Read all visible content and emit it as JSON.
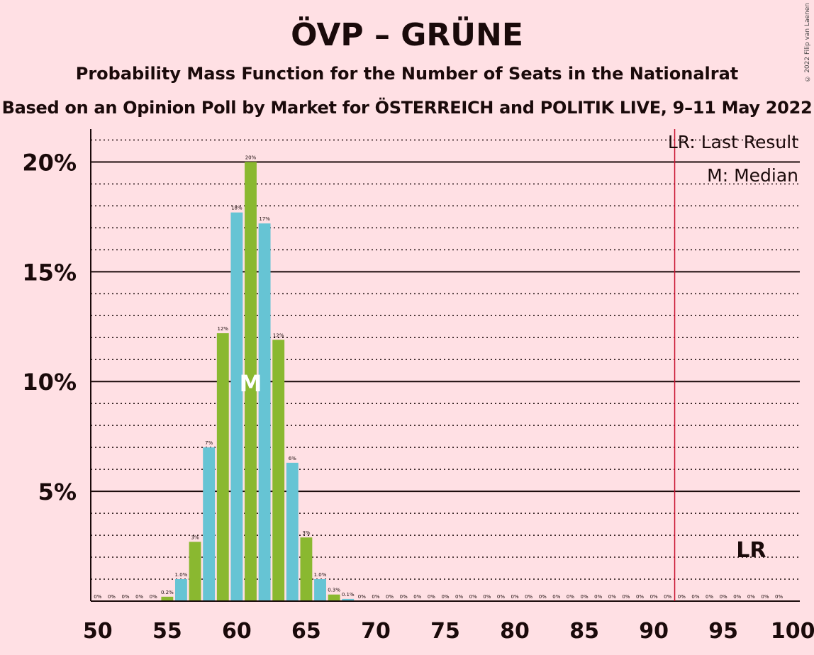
{
  "header": {
    "title": "ÖVP – GRÜNE",
    "subtitle": "Probability Mass Function for the Number of Seats in the Nationalrat",
    "source_line": "Based on an Opinion Poll by Market for ÖSTERREICH and POLITIK LIVE, 9–11 May 2022",
    "copyright": "© 2022 Filip van Laenen"
  },
  "legend": {
    "last_result": "LR: Last Result",
    "median": "M: Median",
    "lr_marker": "LR",
    "median_marker": "M"
  },
  "colors": {
    "background": "#ffe0e4",
    "green": "#8ab830",
    "blue": "#66c4d4",
    "last_result_line": "#c8102e",
    "text": "#1a0a0a"
  },
  "chart_data": {
    "type": "bar",
    "x": [
      50,
      51,
      52,
      53,
      54,
      55,
      56,
      57,
      58,
      59,
      60,
      61,
      62,
      63,
      64,
      65,
      66,
      67,
      68,
      69,
      70,
      71,
      72,
      73,
      74,
      75,
      76,
      77,
      78,
      79,
      80,
      81,
      82,
      83,
      84,
      85,
      86,
      87,
      88,
      89,
      90,
      91,
      92,
      93,
      94,
      95,
      96,
      97,
      98,
      99,
      100
    ],
    "values": [
      0,
      0,
      0,
      0,
      0,
      0.2,
      1.0,
      2.7,
      7.0,
      12.2,
      17.7,
      20.0,
      17.2,
      11.9,
      6.3,
      2.9,
      1.0,
      0.3,
      0.1,
      0,
      0,
      0,
      0,
      0,
      0,
      0,
      0,
      0,
      0,
      0,
      0,
      0,
      0,
      0,
      0,
      0,
      0,
      0,
      0,
      0,
      0,
      0,
      0,
      0,
      0,
      0,
      0,
      0,
      0,
      0
    ],
    "labels": [
      "0%",
      "0%",
      "0%",
      "0%",
      "0%",
      "0.2%",
      "1.0%",
      "3%",
      "7%",
      "12%",
      "18%",
      "20%",
      "17%",
      "12%",
      "6%",
      "3%",
      "1.0%",
      "0.3%",
      "0.1%",
      "0%",
      "0%",
      "0%",
      "0%",
      "0%",
      "0%",
      "0%",
      "0%",
      "0%",
      "0%",
      "0%",
      "0%",
      "0%",
      "0%",
      "0%",
      "0%",
      "0%",
      "0%",
      "0%",
      "0%",
      "0%",
      "0%",
      "0%",
      "0%",
      "0%",
      "0%",
      "0%",
      "0%",
      "0%",
      "0%",
      "0%"
    ],
    "xlim": [
      50,
      100
    ],
    "ylim": [
      0,
      21.5
    ],
    "x_ticks": [
      50,
      55,
      60,
      65,
      70,
      75,
      80,
      85,
      90,
      95,
      100
    ],
    "x_tick_labels": [
      "50",
      "55",
      "60",
      "65",
      "70",
      "75",
      "80",
      "85",
      "90",
      "95",
      "100"
    ],
    "y_major_ticks": [
      5,
      10,
      15,
      20
    ],
    "y_tick_labels": [
      "5%",
      "10%",
      "15%",
      "20%"
    ],
    "y_minor_step": 1,
    "median": 61,
    "last_result": 92
  }
}
